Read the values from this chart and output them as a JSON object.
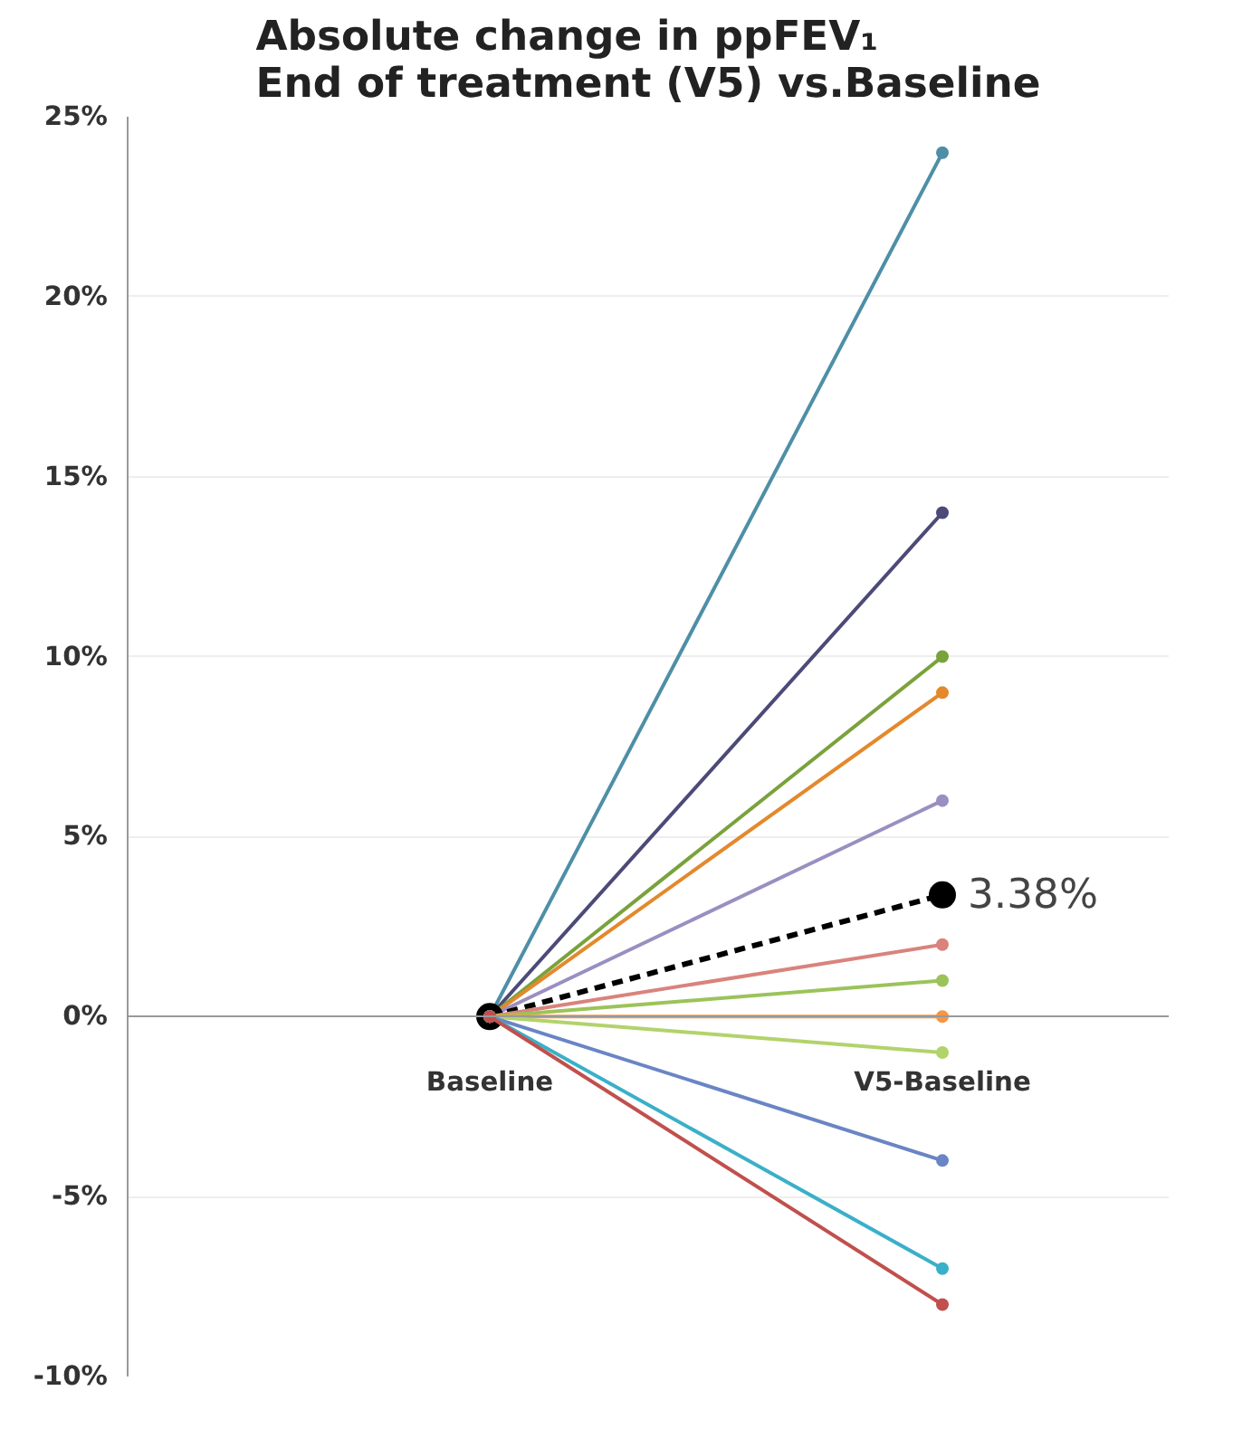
{
  "chart_data": {
    "type": "line",
    "title": "Absolute change in ppFEV₁\nEnd of treatment (V5) vs.Baseline",
    "categories": [
      "Baseline",
      "V5-Baseline"
    ],
    "series": [
      {
        "color": "#4e8fa6",
        "values": [
          0,
          24
        ]
      },
      {
        "color": "#4b4a78",
        "values": [
          0,
          14
        ]
      },
      {
        "color": "#7aa23c",
        "values": [
          0,
          10
        ]
      },
      {
        "color": "#e3892c",
        "values": [
          0,
          9
        ]
      },
      {
        "color": "#9a8fc0",
        "values": [
          0,
          6
        ]
      },
      {
        "color": "#000000",
        "values": [
          0,
          3.38
        ],
        "line_style": "dashed",
        "value_labels": [
          null,
          "3.38%"
        ]
      },
      {
        "color": "#d9837d",
        "values": [
          0,
          2
        ]
      },
      {
        "color": "#9bc35a",
        "values": [
          0,
          1
        ]
      },
      {
        "color": "#f79646",
        "values": [
          0,
          0
        ]
      },
      {
        "color": "#b2d36b",
        "values": [
          0,
          -1
        ]
      },
      {
        "color": "#6a85c4",
        "values": [
          0,
          -4
        ]
      },
      {
        "color": "#3ab0c8",
        "values": [
          0,
          -7
        ]
      },
      {
        "color": "#c0504d",
        "values": [
          0,
          -8
        ]
      }
    ],
    "ylim": [
      -10,
      25
    ],
    "yticks": [
      {
        "value": -10,
        "label": "-10%"
      },
      {
        "value": -5,
        "label": "-5%"
      },
      {
        "value": 0,
        "label": "0%"
      },
      {
        "value": 5,
        "label": "5%"
      },
      {
        "value": 10,
        "label": "10%"
      },
      {
        "value": 15,
        "label": "15%"
      },
      {
        "value": 20,
        "label": "20%"
      },
      {
        "value": 25,
        "label": "25%"
      }
    ],
    "grid": "y",
    "marker": "circle",
    "line_style": "solid"
  }
}
